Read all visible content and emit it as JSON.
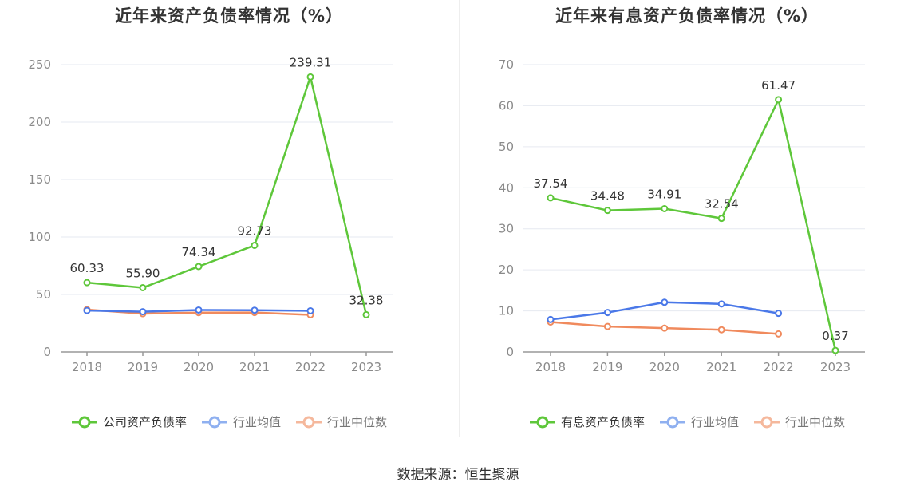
{
  "source_label": "数据来源：恒生聚源",
  "colors": {
    "green": "#5ec73a",
    "blue": "#4a78e8",
    "orange": "#f08a5d",
    "grid": "#e6e9f0",
    "axis": "#999999"
  },
  "chart_data": [
    {
      "type": "line",
      "title": "近年来资产负债率情况（%）",
      "categories": [
        "2018",
        "2019",
        "2020",
        "2021",
        "2022",
        "2023"
      ],
      "ylim": [
        0,
        250
      ],
      "yticks": [
        0,
        50,
        100,
        150,
        200,
        250
      ],
      "grid": true,
      "legend_position": "bottom",
      "series": [
        {
          "name": "公司资产负债率",
          "color": "#5ec73a",
          "values": [
            60.33,
            55.9,
            74.34,
            92.73,
            239.31,
            32.38
          ],
          "labels": [
            "60.33",
            "55.90",
            "74.34",
            "92.73",
            "239.31",
            "32.38"
          ]
        },
        {
          "name": "行业均值",
          "color": "#4a78e8",
          "values": [
            36.0,
            35.0,
            36.5,
            36.3,
            35.8,
            null
          ]
        },
        {
          "name": "行业中位数",
          "color": "#f08a5d",
          "values": [
            36.8,
            33.3,
            34.2,
            34.3,
            32.3,
            null
          ]
        }
      ]
    },
    {
      "type": "line",
      "title": "近年来有息资产负债率情况（%）",
      "categories": [
        "2018",
        "2019",
        "2020",
        "2021",
        "2022",
        "2023"
      ],
      "ylim": [
        0,
        70
      ],
      "yticks": [
        0,
        10,
        20,
        30,
        40,
        50,
        60,
        70
      ],
      "grid": true,
      "legend_position": "bottom",
      "series": [
        {
          "name": "有息资产负债率",
          "color": "#5ec73a",
          "values": [
            37.54,
            34.48,
            34.91,
            32.54,
            61.47,
            0.37
          ],
          "labels": [
            "37.54",
            "34.48",
            "34.91",
            "32.54",
            "61.47",
            "0.37"
          ]
        },
        {
          "name": "行业均值",
          "color": "#4a78e8",
          "values": [
            7.9,
            9.6,
            12.1,
            11.7,
            9.4,
            null
          ]
        },
        {
          "name": "行业中位数",
          "color": "#f08a5d",
          "values": [
            7.3,
            6.2,
            5.8,
            5.4,
            4.4,
            null
          ]
        }
      ]
    }
  ]
}
